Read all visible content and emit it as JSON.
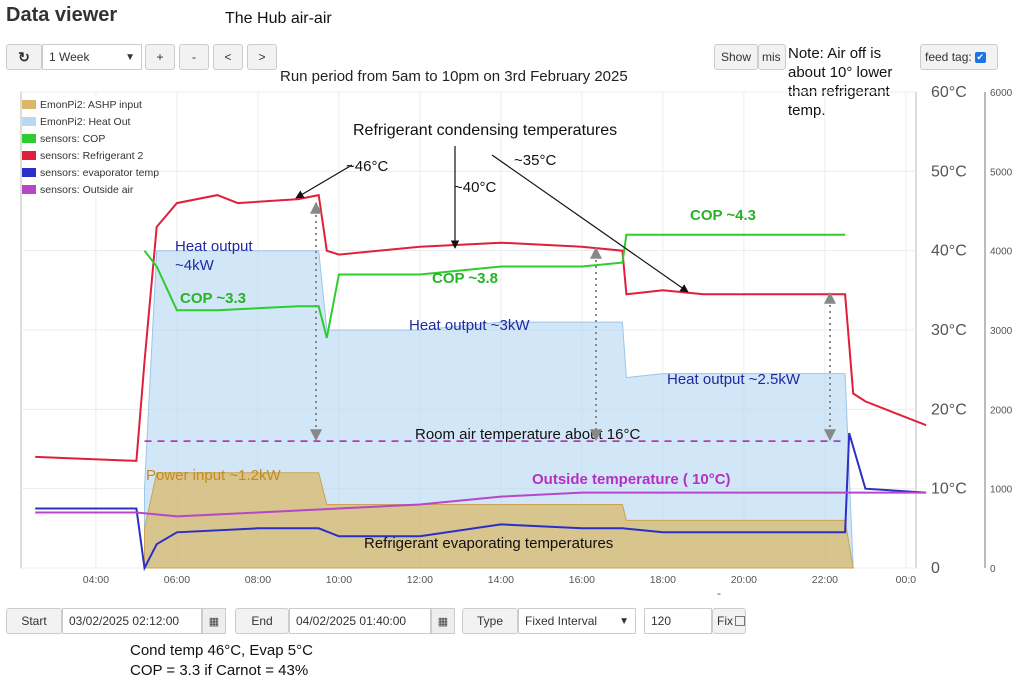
{
  "app": {
    "title": "Data viewer",
    "subtitle": "The Hub air-air"
  },
  "toolbar": {
    "refresh_icon": "refresh-icon",
    "range_value": "1 Week",
    "zoom_in": "+",
    "zoom_out": "-",
    "prev": "<",
    "next": ">",
    "show_label": "Show",
    "missing_label": "mis",
    "feed_tag_label": "feed tag:",
    "checkbox_mark": "✔"
  },
  "note": {
    "text": "Note:  Air off is about 10° lower than refrigerant temp."
  },
  "chart_data": {
    "type": "line",
    "title": "Run period from 5am to 10pm on 3rd February 2025",
    "x_ticks": [
      "04:00",
      "06:00",
      "08:00",
      "10:00",
      "12:00",
      "14:00",
      "16:00",
      "18:00",
      "20:00",
      "22:00",
      "00:0"
    ],
    "y_left_ticks": [
      "0",
      "10°C",
      "20°C",
      "30°C",
      "40°C",
      "50°C",
      "60°C"
    ],
    "y_right_ticks": [
      "0",
      "1000",
      "2000",
      "3000",
      "4000",
      "5000",
      "6000"
    ],
    "ylim_left": [
      0,
      60
    ],
    "ylim_right": [
      0,
      6000
    ],
    "legend": [
      {
        "name": "EmonPi2: ASHP input",
        "color": "#d9b86a"
      },
      {
        "name": "EmonPi2: Heat Out",
        "color": "#b9d8f2"
      },
      {
        "name": "sensors: COP",
        "color": "#2ecc2e"
      },
      {
        "name": "sensors: Refrigerant 2",
        "color": "#e0203a"
      },
      {
        "name": "sensors: evaporator temp",
        "color": "#2a2fc7"
      },
      {
        "name": "sensors: Outside air",
        "color": "#b746c9"
      }
    ],
    "series": [
      {
        "name": "sensors: Refrigerant 2",
        "axis": "left",
        "x": [
          2.5,
          5.0,
          5.2,
          5.5,
          6.0,
          7.0,
          7.5,
          9.0,
          9.5,
          9.7,
          10.0,
          12.0,
          14.0,
          16.0,
          17.0,
          17.1,
          18.0,
          19.0,
          20.0,
          21.0,
          22.0,
          22.5,
          22.7,
          23.0,
          24.5
        ],
        "values": [
          14,
          13.5,
          26,
          43,
          46,
          47,
          46,
          46.5,
          47,
          40,
          39.5,
          40.5,
          41,
          40.5,
          40,
          34.5,
          35,
          34.5,
          34.5,
          34.5,
          34.5,
          34.5,
          22,
          21,
          18
        ]
      },
      {
        "name": "sensors: COP",
        "axis": "left",
        "x": [
          5.2,
          5.5,
          6.0,
          7.0,
          9.0,
          9.5,
          9.7,
          10.0,
          12.0,
          14.0,
          16.0,
          17.0,
          17.1,
          18.0,
          20.0,
          22.0,
          22.5
        ],
        "values": [
          40,
          38,
          32.5,
          32.5,
          33,
          33,
          29,
          37,
          37,
          38,
          38,
          38.5,
          42,
          42,
          42,
          42,
          42
        ]
      },
      {
        "name": "sensors: evaporator temp",
        "axis": "left",
        "x": [
          2.5,
          5.0,
          5.2,
          5.5,
          6.0,
          8.0,
          9.5,
          10.0,
          12.0,
          14.0,
          16.0,
          17.0,
          18.0,
          20.0,
          22.0,
          22.5,
          22.6,
          23.0,
          24.5
        ],
        "values": [
          7.5,
          7.5,
          0,
          3,
          4.5,
          5,
          5,
          4,
          4,
          5.5,
          5,
          5,
          4.5,
          4.5,
          4.5,
          4.5,
          17,
          10,
          9.5
        ]
      },
      {
        "name": "sensors: Outside air",
        "axis": "left",
        "x": [
          2.5,
          5.0,
          6.0,
          8.0,
          10.0,
          12.0,
          14.0,
          16.0,
          18.0,
          20.0,
          22.0,
          22.5,
          24.5
        ],
        "values": [
          7,
          7,
          6.5,
          7,
          7.5,
          8,
          9,
          9.5,
          9.5,
          9.5,
          9.5,
          9.5,
          9.5
        ]
      },
      {
        "name": "EmonPi2: Heat Out",
        "axis": "right",
        "type": "area",
        "x": [
          5.2,
          5.5,
          6.0,
          7.0,
          9.0,
          9.5,
          9.7,
          10.0,
          12.0,
          14.0,
          16.0,
          17.0,
          17.1,
          18.0,
          20.0,
          22.0,
          22.5,
          22.7
        ],
        "values": [
          1000,
          4000,
          4000,
          4000,
          4000,
          4000,
          3000,
          3000,
          3000,
          3100,
          3100,
          3100,
          2400,
          2450,
          2450,
          2450,
          2450,
          0
        ]
      },
      {
        "name": "EmonPi2: ASHP input",
        "axis": "right",
        "type": "area",
        "x": [
          5.2,
          5.5,
          6.0,
          8.0,
          9.5,
          9.7,
          10.0,
          14.0,
          16.0,
          17.0,
          17.1,
          20.0,
          22.0,
          22.5,
          22.7
        ],
        "values": [
          500,
          1200,
          1200,
          1200,
          1200,
          800,
          800,
          800,
          800,
          800,
          600,
          600,
          600,
          600,
          0
        ]
      }
    ],
    "room_air_line": {
      "value": 16,
      "label": "Room air temperature  about 16°C"
    },
    "annotations": [
      {
        "text": "Refrigerant condensing temperatures",
        "color": "#111"
      },
      {
        "text": "~46°C",
        "color": "#111"
      },
      {
        "text": "~40°C",
        "color": "#111"
      },
      {
        "text": "~35°C",
        "color": "#111"
      },
      {
        "text": "Heat output\n~4kW",
        "color": "#1f2aa0"
      },
      {
        "text": "Heat output ~3kW",
        "color": "#1f2aa0"
      },
      {
        "text": "Heat output ~2.5kW",
        "color": "#1f2aa0"
      },
      {
        "text": "COP ~3.3",
        "color": "#26b326"
      },
      {
        "text": "COP ~3.8",
        "color": "#26b326"
      },
      {
        "text": "COP ~4.3",
        "color": "#26b326"
      },
      {
        "text": "Power input ~1.2kW",
        "color": "#c48a1f"
      },
      {
        "text": "Outside temperature ( 10°C)",
        "color": "#b530c4"
      },
      {
        "text": "Refrigerant evaporating  temperatures",
        "color": "#111"
      }
    ]
  },
  "controls": {
    "start_label": "Start",
    "start_value": "03/02/2025 02:12:00",
    "end_label": "End",
    "end_value": "04/02/2025 01:40:00",
    "type_label": "Type",
    "type_value": "Fixed Interval",
    "interval_value": "120",
    "fix_label": "Fix",
    "calendar_icon": "calendar-icon",
    "dash_mark": "-"
  },
  "bottom_note": {
    "line1": "Cond temp 46°C, Evap 5°C",
    "line2": "COP = 3.3 if Carnot = 43%"
  }
}
